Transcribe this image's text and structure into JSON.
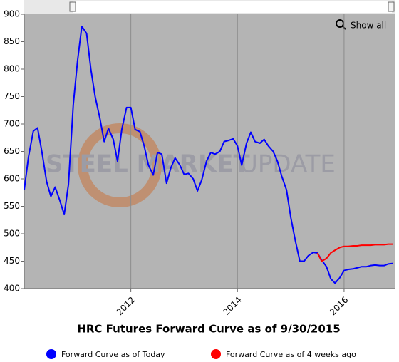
{
  "chart_data": {
    "type": "line",
    "title": "HRC Futures Forward Curve as of 9/30/2015",
    "watermark": [
      "STEEL MARKET",
      "UPDATE"
    ],
    "button": "Show all",
    "x": [
      2010,
      2010.08,
      2010.17,
      2010.25,
      2010.33,
      2010.42,
      2010.5,
      2010.58,
      2010.67,
      2010.75,
      2010.83,
      2010.92,
      2011,
      2011.08,
      2011.17,
      2011.25,
      2011.33,
      2011.42,
      2011.5,
      2011.58,
      2011.67,
      2011.75,
      2011.83,
      2011.92,
      2012,
      2012.08,
      2012.17,
      2012.25,
      2012.33,
      2012.42,
      2012.5,
      2012.58,
      2012.67,
      2012.75,
      2012.83,
      2012.92,
      2013,
      2013.08,
      2013.17,
      2013.25,
      2013.33,
      2013.42,
      2013.5,
      2013.58,
      2013.67,
      2013.75,
      2013.83,
      2013.92,
      2014,
      2014.08,
      2014.17,
      2014.25,
      2014.33,
      2014.42,
      2014.5,
      2014.58,
      2014.67,
      2014.75,
      2014.83,
      2014.92,
      2015,
      2015.08,
      2015.17,
      2015.25,
      2015.33,
      2015.42,
      2015.5,
      2015.58,
      2015.67,
      2015.75,
      2015.83,
      2015.92,
      2016,
      2016.08,
      2016.17,
      2016.25,
      2016.33,
      2016.42,
      2016.5,
      2016.58,
      2016.67,
      2016.75,
      2016.83,
      2016.92
    ],
    "series": [
      {
        "name": "Forward Curve as of Today",
        "color": "#0000ff",
        "values": [
          580,
          640,
          687,
          693,
          650,
          595,
          568,
          585,
          560,
          535,
          590,
          735,
          815,
          878,
          865,
          800,
          750,
          710,
          668,
          692,
          672,
          632,
          690,
          730,
          730,
          690,
          686,
          660,
          625,
          607,
          648,
          645,
          592,
          620,
          638,
          625,
          608,
          610,
          600,
          578,
          598,
          632,
          648,
          645,
          650,
          668,
          670,
          673,
          660,
          625,
          665,
          685,
          668,
          665,
          672,
          660,
          650,
          632,
          605,
          580,
          530,
          490,
          450,
          450,
          460,
          466,
          465,
          452,
          440,
          418,
          410,
          420,
          433,
          435,
          436,
          438,
          440,
          440,
          442,
          443,
          442,
          442,
          445,
          446
        ]
      },
      {
        "name": "Forward Curve as of 4 weeks ago",
        "color": "#ff0000",
        "values": [
          null,
          null,
          null,
          null,
          null,
          null,
          null,
          null,
          null,
          null,
          null,
          null,
          null,
          null,
          null,
          null,
          null,
          null,
          null,
          null,
          null,
          null,
          null,
          null,
          null,
          null,
          null,
          null,
          null,
          null,
          null,
          null,
          null,
          null,
          null,
          null,
          null,
          null,
          null,
          null,
          null,
          null,
          null,
          null,
          null,
          null,
          null,
          null,
          null,
          null,
          null,
          null,
          null,
          null,
          null,
          null,
          null,
          null,
          null,
          null,
          null,
          null,
          null,
          null,
          null,
          null,
          465,
          450,
          455,
          465,
          470,
          475,
          477,
          477,
          478,
          478,
          479,
          479,
          479,
          480,
          480,
          480,
          481,
          481
        ]
      }
    ],
    "xlim": [
      2010,
      2016.95
    ],
    "xticks": [
      2012,
      2014,
      2016
    ],
    "ylim": [
      400,
      900
    ],
    "yticks": [
      400,
      450,
      500,
      550,
      600,
      650,
      700,
      750,
      800,
      850,
      900
    ],
    "grid": "x",
    "legend": "bottom"
  }
}
